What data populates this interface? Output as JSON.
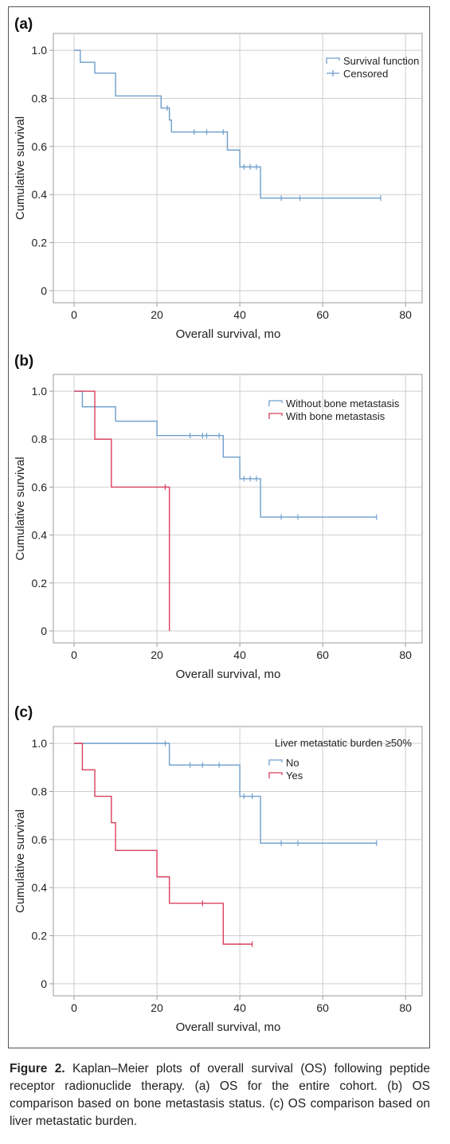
{
  "figure": {
    "caption_label": "Figure 2.",
    "caption_text": "Kaplan–Meier plots of overall survival (OS) following peptide receptor radionuclide therapy. (a) OS for the entire cohort. (b) OS comparison based on bone metastasis status. (c) OS comparison based on liver metastatic burden."
  },
  "colors": {
    "blue": "#6f9fcb",
    "red": "#d8405e",
    "grid": "#cfcfcf",
    "axis": "#9a9a9a"
  },
  "chart_data": [
    {
      "type": "line",
      "panel": "(a)",
      "title": "",
      "xlabel": "Overall survival, mo",
      "ylabel": "Cumulative survival",
      "xlim": [
        -5,
        84
      ],
      "ylim": [
        -0.05,
        1.07
      ],
      "xticks": [
        0,
        20,
        40,
        60,
        80
      ],
      "yticks": [
        0,
        0.2,
        0.4,
        0.6,
        0.8,
        1.0
      ],
      "ytick_labels": [
        "0",
        "0.2",
        "0.4",
        "0.6",
        "0.8",
        "1.0"
      ],
      "grid": true,
      "legend_position": "top-right",
      "legend_title": "",
      "series": [
        {
          "name": "Survival function",
          "color": "#6f9fcb",
          "x": [
            0,
            1.5,
            5,
            10,
            21,
            23,
            23.5,
            37,
            40,
            45,
            74
          ],
          "y": [
            1.0,
            0.95,
            0.905,
            0.81,
            0.76,
            0.71,
            0.66,
            0.585,
            0.515,
            0.385,
            0.385
          ],
          "censored_x": [
            22.5,
            29,
            32,
            36,
            41,
            42.5,
            44,
            50,
            54.5,
            74
          ],
          "censored_y": [
            0.76,
            0.66,
            0.66,
            0.66,
            0.515,
            0.515,
            0.515,
            0.385,
            0.385,
            0.385
          ]
        }
      ],
      "legend_extra": [
        {
          "name": "Censored",
          "color": "#6f9fcb"
        }
      ]
    },
    {
      "type": "line",
      "panel": "(b)",
      "title": "",
      "xlabel": "Overall survival, mo",
      "ylabel": "Cumulative survival",
      "xlim": [
        -5,
        84
      ],
      "ylim": [
        -0.05,
        1.07
      ],
      "xticks": [
        0,
        20,
        40,
        60,
        80
      ],
      "yticks": [
        0,
        0.2,
        0.4,
        0.6,
        0.8,
        1.0
      ],
      "ytick_labels": [
        "0",
        "0.2",
        "0.4",
        "0.6",
        "0.8",
        "1.0"
      ],
      "grid": true,
      "legend_position": "top-right",
      "legend_title": "",
      "series": [
        {
          "name": "Without bone metastasis",
          "color": "#6f9fcb",
          "x": [
            0,
            2,
            10,
            20,
            36,
            40,
            45,
            73
          ],
          "y": [
            1.0,
            0.935,
            0.875,
            0.815,
            0.725,
            0.635,
            0.475,
            0.475
          ],
          "censored_x": [
            28,
            31,
            32,
            35,
            41,
            42.5,
            44,
            50,
            54,
            73
          ],
          "censored_y": [
            0.815,
            0.815,
            0.815,
            0.815,
            0.635,
            0.635,
            0.635,
            0.475,
            0.475,
            0.475
          ]
        },
        {
          "name": "With bone metastasis",
          "color": "#d8405e",
          "x": [
            0,
            5,
            9,
            23,
            23
          ],
          "y": [
            1.0,
            0.8,
            0.6,
            0.6,
            0.0
          ],
          "censored_x": [
            22
          ],
          "censored_y": [
            0.6
          ]
        }
      ]
    },
    {
      "type": "line",
      "panel": "(c)",
      "title": "",
      "xlabel": "Overall survival, mo",
      "ylabel": "Cumulative survival",
      "xlim": [
        -5,
        84
      ],
      "ylim": [
        -0.05,
        1.07
      ],
      "xticks": [
        0,
        20,
        40,
        60,
        80
      ],
      "yticks": [
        0,
        0.2,
        0.4,
        0.6,
        0.8,
        1.0
      ],
      "ytick_labels": [
        "0",
        "0.2",
        "0.4",
        "0.6",
        "0.8",
        "1.0"
      ],
      "grid": true,
      "legend_position": "top-right",
      "legend_title": "Liver metastatic burden ≥50%",
      "series": [
        {
          "name": "No",
          "color": "#6f9fcb",
          "x": [
            0,
            23,
            40,
            45,
            73
          ],
          "y": [
            1.0,
            0.91,
            0.78,
            0.585,
            0.585
          ],
          "censored_x": [
            22,
            28,
            31,
            35,
            41,
            43,
            50,
            54,
            73
          ],
          "censored_y": [
            1.0,
            0.91,
            0.91,
            0.91,
            0.78,
            0.78,
            0.585,
            0.585,
            0.585
          ]
        },
        {
          "name": "Yes",
          "color": "#d8405e",
          "x": [
            0,
            2,
            5,
            9,
            10,
            20,
            23,
            36,
            43
          ],
          "y": [
            1.0,
            0.89,
            0.78,
            0.67,
            0.555,
            0.445,
            0.335,
            0.165,
            0.165
          ],
          "censored_x": [
            31,
            43
          ],
          "censored_y": [
            0.335,
            0.165
          ]
        }
      ]
    }
  ]
}
